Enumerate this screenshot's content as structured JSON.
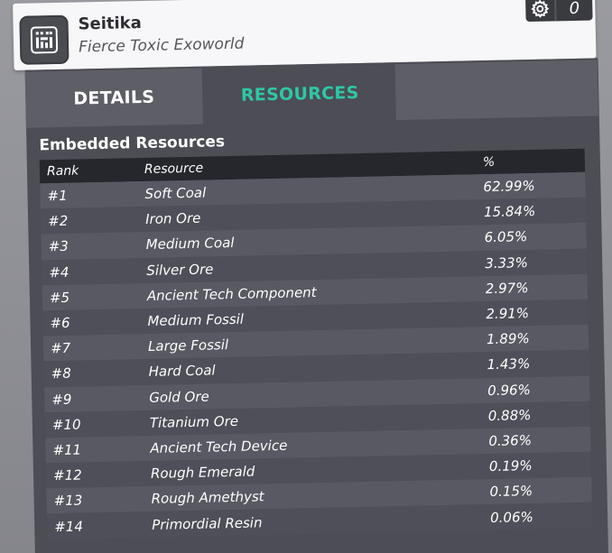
{
  "planet": {
    "name": "Seitika",
    "description": "Fierce Toxic Exoworld",
    "icon": "planet-grid-icon"
  },
  "badge": {
    "icon": "gear-icon",
    "count": "0"
  },
  "tabs": [
    {
      "label": "DETAILS",
      "active": false
    },
    {
      "label": "RESOURCES",
      "active": true
    },
    {
      "label": "",
      "active": false
    }
  ],
  "colors": {
    "active_tab": "#2fc7a4",
    "panel_bg": "#4c4d55",
    "header_bg": "#f7f7f9"
  },
  "section_title": "Embedded Resources",
  "table": {
    "headers": [
      "Rank",
      "Resource",
      "%"
    ],
    "rows": [
      {
        "rank": "#1",
        "resource": "Soft Coal",
        "pct": "62.99%"
      },
      {
        "rank": "#2",
        "resource": "Iron Ore",
        "pct": "15.84%"
      },
      {
        "rank": "#3",
        "resource": "Medium Coal",
        "pct": "6.05%"
      },
      {
        "rank": "#4",
        "resource": "Silver Ore",
        "pct": "3.33%"
      },
      {
        "rank": "#5",
        "resource": "Ancient Tech Component",
        "pct": "2.97%"
      },
      {
        "rank": "#6",
        "resource": "Medium Fossil",
        "pct": "2.91%"
      },
      {
        "rank": "#7",
        "resource": "Large Fossil",
        "pct": "1.89%"
      },
      {
        "rank": "#8",
        "resource": "Hard Coal",
        "pct": "1.43%"
      },
      {
        "rank": "#9",
        "resource": "Gold Ore",
        "pct": "0.96%"
      },
      {
        "rank": "#10",
        "resource": "Titanium Ore",
        "pct": "0.88%"
      },
      {
        "rank": "#11",
        "resource": "Ancient Tech Device",
        "pct": "0.36%"
      },
      {
        "rank": "#12",
        "resource": "Rough Emerald",
        "pct": "0.19%"
      },
      {
        "rank": "#13",
        "resource": "Rough Amethyst",
        "pct": "0.15%"
      },
      {
        "rank": "#14",
        "resource": "Primordial Resin",
        "pct": "0.06%"
      }
    ]
  }
}
